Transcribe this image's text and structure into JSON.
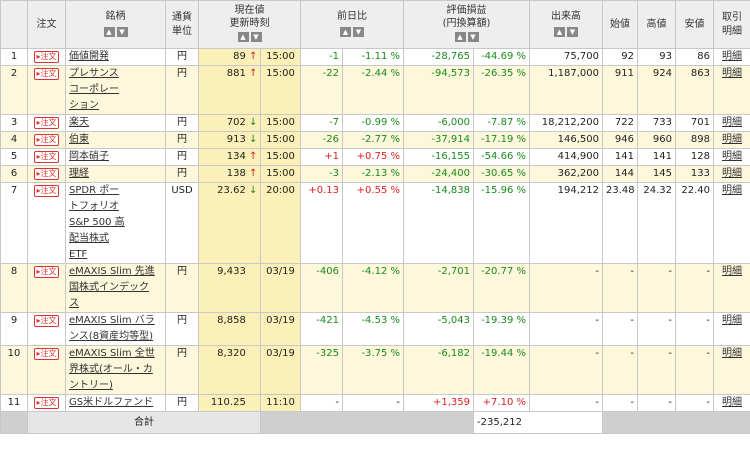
{
  "headers": {
    "no": "",
    "order": "注文",
    "name": "銘柄",
    "currency": "通貨\n単位",
    "price": "現在値\n更新時刻",
    "change": "前日比",
    "pl": "評価損益\n(円換算額)",
    "volume": "出来高",
    "open": "始値",
    "high": "高値",
    "low": "安値",
    "detail": "取引\n明細"
  },
  "sort_icons": {
    "up": "▲",
    "down": "▼"
  },
  "order_label": "注文",
  "detail_label": "明細",
  "rows": [
    {
      "no": "1",
      "name": "価値開発",
      "cur": "円",
      "price": "89",
      "arrow": "↑",
      "dir": "up",
      "time": "15:00",
      "chg": "-1",
      "chgp": "-1.11 %",
      "chgs": "neg",
      "pl": "-28,765",
      "plp": "-44.69 %",
      "pls": "neg",
      "vol": "75,700",
      "open": "92",
      "high": "93",
      "low": "86",
      "stripe": false
    },
    {
      "no": "2",
      "name": "プレサンス\nコーポレー\nション",
      "cur": "円",
      "price": "881",
      "arrow": "↑",
      "dir": "up",
      "time": "15:00",
      "chg": "-22",
      "chgp": "-2.44 %",
      "chgs": "neg",
      "pl": "-94,573",
      "plp": "-26.35 %",
      "pls": "neg",
      "vol": "1,187,000",
      "open": "911",
      "high": "924",
      "low": "863",
      "stripe": true
    },
    {
      "no": "3",
      "name": "楽天",
      "cur": "円",
      "price": "702",
      "arrow": "↓",
      "dir": "dn",
      "time": "15:00",
      "chg": "-7",
      "chgp": "-0.99 %",
      "chgs": "neg",
      "pl": "-6,000",
      "plp": "-7.87 %",
      "pls": "neg",
      "vol": "18,212,200",
      "open": "722",
      "high": "733",
      "low": "701",
      "stripe": false
    },
    {
      "no": "4",
      "name": "伯東",
      "cur": "円",
      "price": "913",
      "arrow": "↓",
      "dir": "dn",
      "time": "15:00",
      "chg": "-26",
      "chgp": "-2.77 %",
      "chgs": "neg",
      "pl": "-37,914",
      "plp": "-17.19 %",
      "pls": "neg",
      "vol": "146,500",
      "open": "946",
      "high": "960",
      "low": "898",
      "stripe": true
    },
    {
      "no": "5",
      "name": "岡本硝子",
      "cur": "円",
      "price": "134",
      "arrow": "↑",
      "dir": "up",
      "time": "15:00",
      "chg": "+1",
      "chgp": "+0.75 %",
      "chgs": "pos",
      "pl": "-16,155",
      "plp": "-54.66 %",
      "pls": "neg",
      "vol": "414,900",
      "open": "141",
      "high": "141",
      "low": "128",
      "stripe": false
    },
    {
      "no": "6",
      "name": "理経",
      "cur": "円",
      "price": "138",
      "arrow": "↑",
      "dir": "up",
      "time": "15:00",
      "chg": "-3",
      "chgp": "-2.13 %",
      "chgs": "neg",
      "pl": "-24,400",
      "plp": "-30.65 %",
      "pls": "neg",
      "vol": "362,200",
      "open": "144",
      "high": "145",
      "low": "133",
      "stripe": true
    },
    {
      "no": "7",
      "name": "SPDR ポー\nトフォリオ\nS&P 500 高\n配当株式\nETF",
      "cur": "USD",
      "price": "23.62",
      "arrow": "↓",
      "dir": "dn",
      "time": "20:00",
      "chg": "+0.13",
      "chgp": "+0.55 %",
      "chgs": "pos",
      "pl": "-14,838",
      "plp": "-15.96 %",
      "pls": "neg",
      "vol": "194,212",
      "open": "23.48",
      "high": "24.32",
      "low": "22.40",
      "stripe": false
    },
    {
      "no": "8",
      "name": "eMAXIS Slim 先進\n国株式インデック\nス",
      "cur": "円",
      "price": "9,433",
      "arrow": "",
      "dir": "",
      "time": "03/19",
      "chg": "-406",
      "chgp": "-4.12 %",
      "chgs": "neg",
      "pl": "-2,701",
      "plp": "-20.77 %",
      "pls": "neg",
      "vol": "-",
      "open": "-",
      "high": "-",
      "low": "-",
      "stripe": true
    },
    {
      "no": "9",
      "name": "eMAXIS Slim バラ\nンス(8資産均等型)",
      "cur": "円",
      "price": "8,858",
      "arrow": "",
      "dir": "",
      "time": "03/19",
      "chg": "-421",
      "chgp": "-4.53 %",
      "chgs": "neg",
      "pl": "-5,043",
      "plp": "-19.39 %",
      "pls": "neg",
      "vol": "-",
      "open": "-",
      "high": "-",
      "low": "-",
      "stripe": false
    },
    {
      "no": "10",
      "name": "eMAXIS Slim 全世\n界株式(オール・カ\nントリー)",
      "cur": "円",
      "price": "8,320",
      "arrow": "",
      "dir": "",
      "time": "03/19",
      "chg": "-325",
      "chgp": "-3.75 %",
      "chgs": "neg",
      "pl": "-6,182",
      "plp": "-19.44 %",
      "pls": "neg",
      "vol": "-",
      "open": "-",
      "high": "-",
      "low": "-",
      "stripe": true
    },
    {
      "no": "11",
      "name": "GS米ドルファンド",
      "cur": "円",
      "price": "110.25",
      "arrow": "",
      "dir": "",
      "time": "11:10",
      "chg": "-",
      "chgp": "-",
      "chgs": "",
      "pl": "+1,359",
      "plp": "+7.10 %",
      "pls": "pos",
      "vol": "-",
      "open": "-",
      "high": "-",
      "low": "-",
      "stripe": false
    }
  ],
  "total": {
    "label": "合計",
    "pl": "-235,212"
  },
  "colors": {
    "negative": "#1a8a1a",
    "positive": "#e0201e",
    "stripe": "#fdf8dc",
    "price_col": "#fbf0b8",
    "header": "#eeeeee"
  }
}
